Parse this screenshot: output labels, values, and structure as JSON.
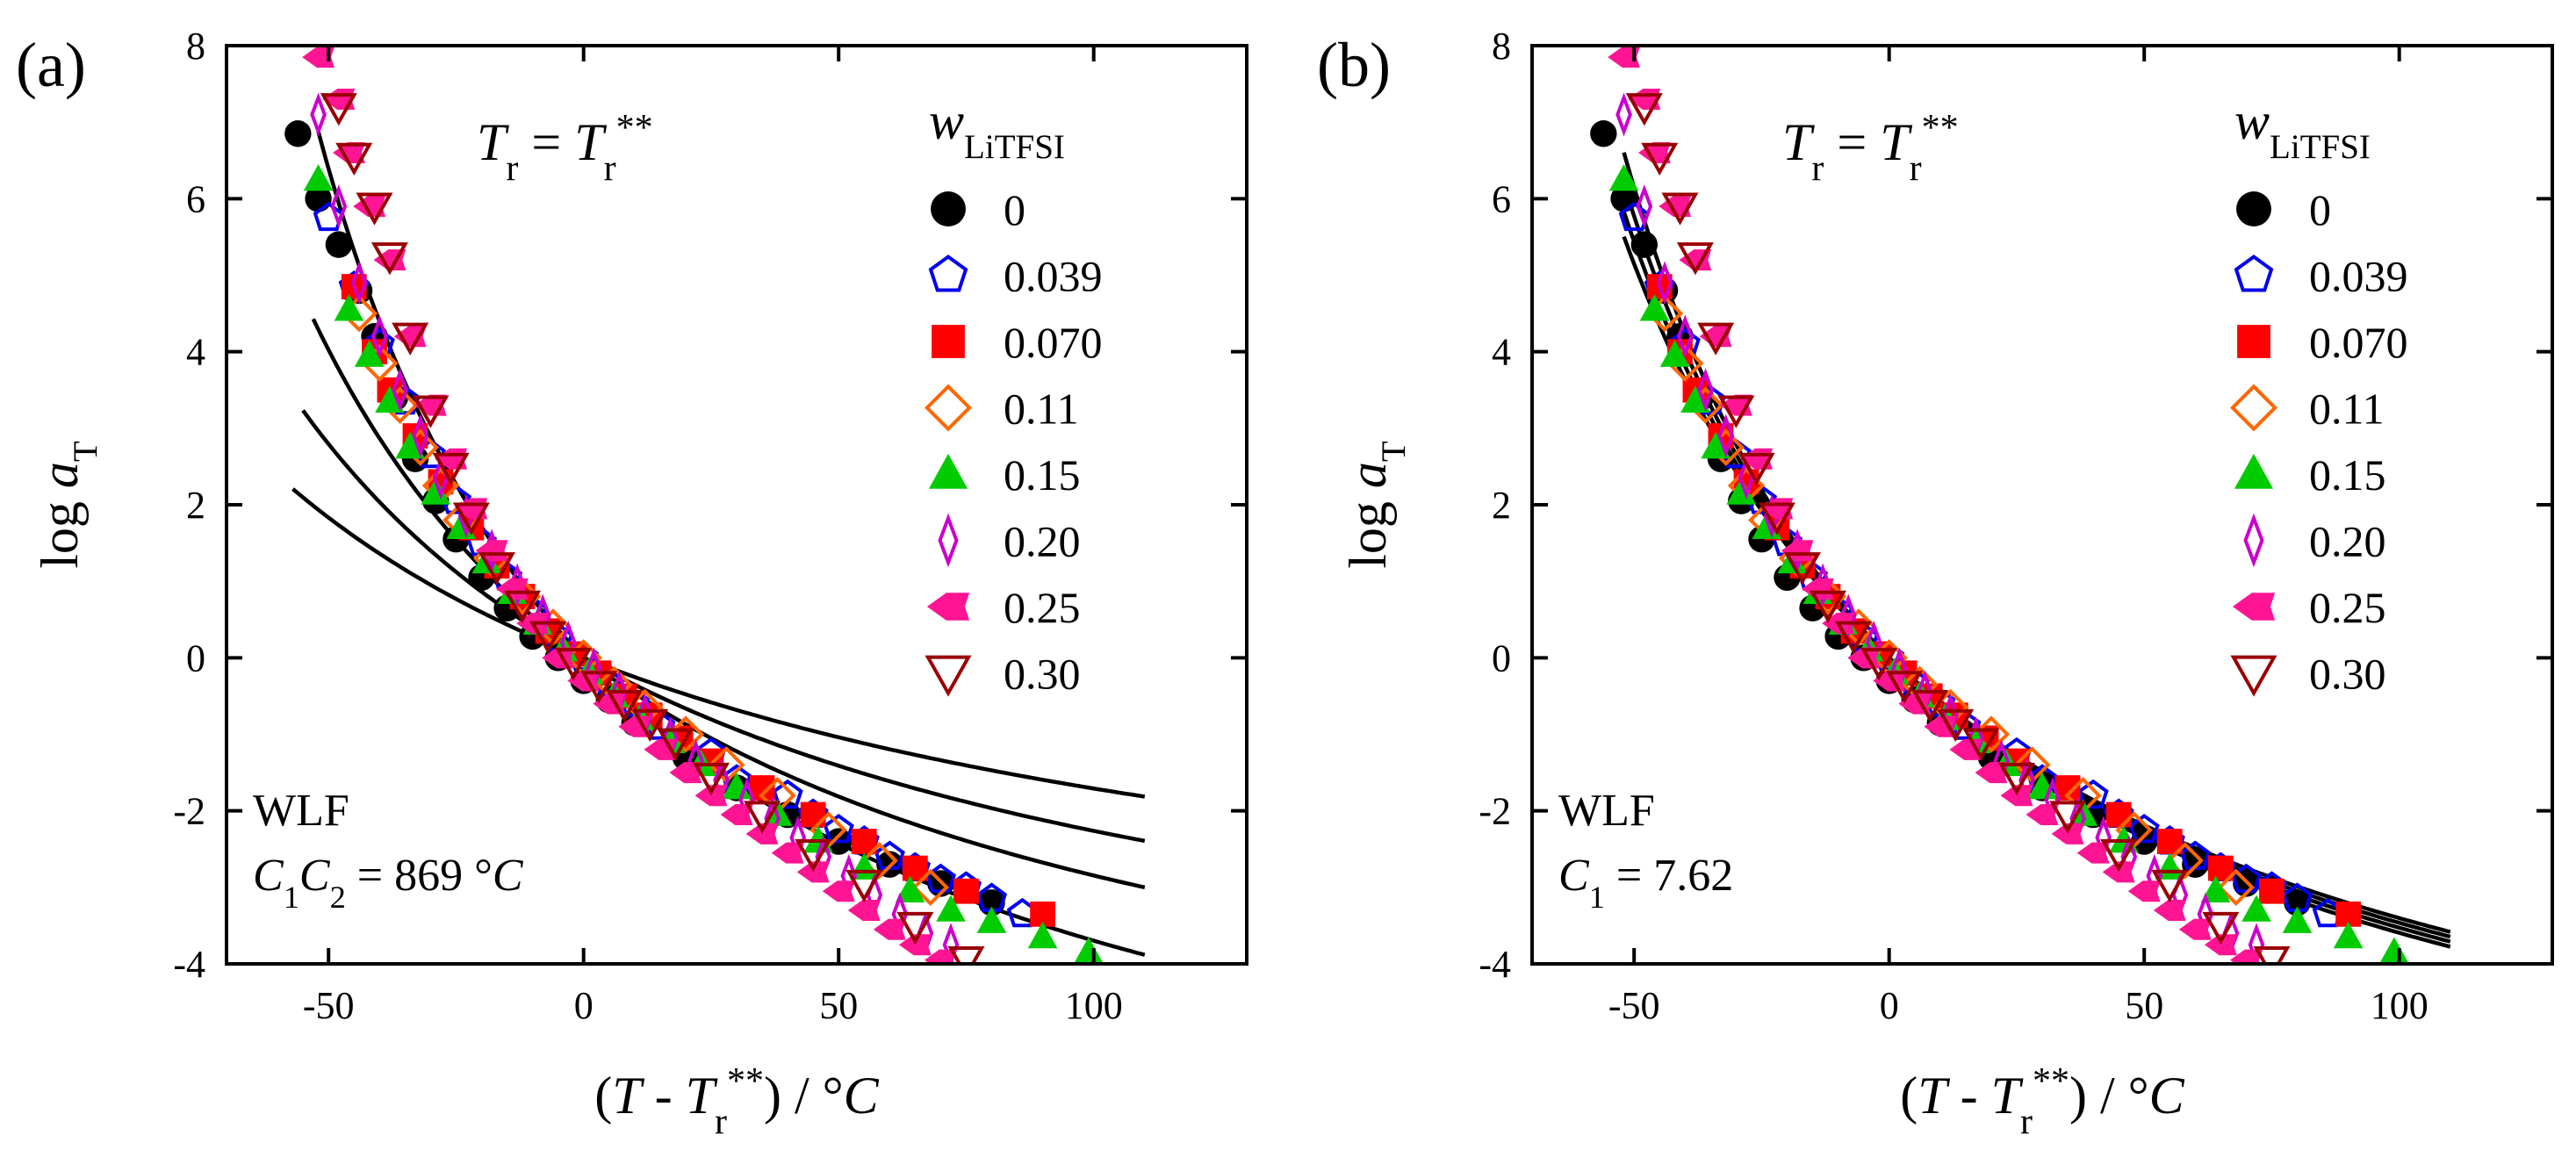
{
  "chart_data": [
    {
      "type": "scatter",
      "panel_label": "(a)",
      "title": "",
      "xlabel": "(T - Tr**) / °C",
      "ylabel": "log aT",
      "xlim": [
        -70,
        130
      ],
      "ylim": [
        -4,
        8
      ],
      "xticks": [
        -50,
        0,
        50,
        100
      ],
      "yticks": [
        -4,
        -2,
        0,
        2,
        4,
        6,
        8
      ],
      "grid": false,
      "reference_label": "Tr = Tr**",
      "legend_title": "wLiTFSI",
      "legend_position": "top-right",
      "fit_label": "WLF",
      "fit_param_label": "C1C2 = 869 °C",
      "series": [
        {
          "name": "0",
          "marker": "circle",
          "color": "#000000",
          "filled": true,
          "x": [
            -56,
            -52,
            -48,
            -44,
            -41,
            -37,
            -33,
            -29,
            -25,
            -20,
            -15,
            -10,
            -5,
            0,
            5,
            10,
            20,
            30,
            40,
            50,
            60,
            70,
            80
          ],
          "y": [
            6.85,
            6.0,
            5.4,
            4.8,
            4.2,
            3.4,
            2.6,
            2.05,
            1.55,
            1.05,
            0.65,
            0.28,
            0.0,
            -0.3,
            -0.55,
            -0.85,
            -1.3,
            -1.7,
            -2.05,
            -2.4,
            -2.7,
            -2.95,
            -3.2
          ]
        },
        {
          "name": "0.039",
          "marker": "pentagon",
          "color": "#0000ee",
          "filled": false,
          "x": [
            -50,
            -45,
            -40,
            -35,
            -30,
            -25,
            -20,
            -15,
            -10,
            -5,
            0,
            5,
            10,
            15,
            25,
            30,
            40,
            45,
            50,
            55,
            60,
            65,
            70,
            75,
            80,
            86
          ],
          "y": [
            5.75,
            4.85,
            4.1,
            3.35,
            2.65,
            2.05,
            1.5,
            1.05,
            0.6,
            0.25,
            0.0,
            -0.35,
            -0.6,
            -0.9,
            -1.25,
            -1.6,
            -1.8,
            -2.05,
            -2.25,
            -2.4,
            -2.6,
            -2.75,
            -2.9,
            -3.0,
            -3.15,
            -3.35
          ]
        },
        {
          "name": "0.070",
          "marker": "square",
          "color": "#ff0000",
          "filled": true,
          "x": [
            -45,
            -41,
            -38,
            -33,
            -28,
            -22,
            -17,
            -12,
            -7,
            -2,
            3,
            8,
            13,
            19,
            25,
            35,
            45,
            55,
            65,
            75,
            90
          ],
          "y": [
            4.85,
            4.0,
            3.5,
            2.9,
            2.3,
            1.7,
            1.2,
            0.8,
            0.35,
            0.05,
            -0.2,
            -0.5,
            -0.75,
            -1.05,
            -1.35,
            -1.7,
            -2.05,
            -2.4,
            -2.75,
            -3.05,
            -3.35
          ]
        },
        {
          "name": "0.11",
          "marker": "diamond",
          "color": "#ff6600",
          "filled": false,
          "x": [
            -44,
            -40,
            -36,
            -32,
            -28,
            -24,
            -18,
            -12,
            -6,
            0,
            6,
            12,
            20,
            28,
            38,
            48,
            58,
            68
          ],
          "y": [
            4.5,
            3.85,
            3.3,
            2.75,
            2.25,
            1.8,
            1.3,
            0.8,
            0.4,
            0.0,
            -0.35,
            -0.65,
            -1.0,
            -1.4,
            -1.8,
            -2.25,
            -2.65,
            -3.0
          ]
        },
        {
          "name": "0.15",
          "marker": "triangle",
          "color": "#00cc00",
          "filled": true,
          "x": [
            -52,
            -46,
            -42,
            -38,
            -34,
            -29,
            -24,
            -19,
            -14,
            -9,
            -4,
            1,
            6,
            11,
            17,
            23,
            30,
            38,
            46,
            55,
            64,
            72,
            80,
            90,
            99
          ],
          "y": [
            6.25,
            4.55,
            3.95,
            3.35,
            2.75,
            2.15,
            1.7,
            1.25,
            0.85,
            0.45,
            0.1,
            -0.2,
            -0.5,
            -0.8,
            -1.1,
            -1.4,
            -1.7,
            -2.05,
            -2.4,
            -2.75,
            -3.05,
            -3.3,
            -3.45,
            -3.65,
            -3.85
          ]
        },
        {
          "name": "0.20",
          "marker": "thin-diamond",
          "color": "#cc00cc",
          "filled": false,
          "x": [
            -52,
            -48,
            -44,
            -40,
            -36,
            -32,
            -28,
            -23,
            -18,
            -13,
            -8,
            -3,
            2,
            7,
            12,
            17,
            22,
            27,
            32,
            37,
            42,
            47,
            52,
            57,
            62,
            67,
            72
          ],
          "y": [
            7.1,
            5.9,
            4.9,
            4.2,
            3.5,
            2.9,
            2.35,
            1.85,
            1.4,
            0.95,
            0.55,
            0.2,
            -0.15,
            -0.45,
            -0.75,
            -1.05,
            -1.35,
            -1.6,
            -1.85,
            -2.1,
            -2.35,
            -2.6,
            -2.85,
            -3.1,
            -3.35,
            -3.6,
            -3.75
          ]
        },
        {
          "name": "0.25",
          "marker": "arrow-diamond",
          "color": "#ff1493",
          "filled": true,
          "x": [
            -52,
            -48,
            -46,
            -42,
            -38,
            -34,
            -30,
            -26,
            -22,
            -18,
            -14,
            -10,
            -5,
            0,
            5,
            10,
            15,
            20,
            25,
            30,
            35,
            40,
            45,
            50,
            55,
            60,
            65,
            70
          ],
          "y": [
            7.85,
            7.3,
            6.6,
            5.9,
            5.2,
            4.2,
            3.3,
            2.6,
            1.95,
            1.4,
            0.9,
            0.45,
            0.0,
            -0.3,
            -0.6,
            -0.9,
            -1.2,
            -1.5,
            -1.8,
            -2.05,
            -2.3,
            -2.55,
            -2.8,
            -3.05,
            -3.3,
            -3.55,
            -3.75,
            -3.95
          ]
        },
        {
          "name": "0.30",
          "marker": "triangle-down",
          "color": "#990000",
          "filled": false,
          "x": [
            -48,
            -45,
            -41,
            -38,
            -34,
            -30,
            -26,
            -22,
            -17,
            -12,
            -7,
            -2,
            3,
            8,
            13,
            18,
            25,
            35,
            45,
            55,
            65,
            75
          ],
          "y": [
            7.2,
            6.55,
            5.9,
            5.25,
            4.2,
            3.25,
            2.5,
            1.85,
            1.2,
            0.7,
            0.3,
            -0.05,
            -0.35,
            -0.6,
            -0.85,
            -1.1,
            -1.55,
            -2.05,
            -2.55,
            -2.95,
            -3.5,
            -3.95
          ]
        }
      ],
      "fit_curves": [
        {
          "c1": 4.8,
          "c2": 181,
          "xmin": -57,
          "xmax": 110
        },
        {
          "c1": 5.7,
          "c2": 152,
          "xmin": -55,
          "xmax": 110
        },
        {
          "c1": 6.6,
          "c2": 132,
          "xmin": -53,
          "xmax": 110
        },
        {
          "c1": 7.8,
          "c2": 111,
          "xmin": -52,
          "xmax": 110
        }
      ]
    },
    {
      "type": "scatter",
      "panel_label": "(b)",
      "title": "",
      "xlabel": "(T - Tr**) / °C",
      "ylabel": "log aT",
      "xlim": [
        -70,
        130
      ],
      "ylim": [
        -4,
        8
      ],
      "xticks": [
        -50,
        0,
        50,
        100
      ],
      "yticks": [
        -4,
        -2,
        0,
        2,
        4,
        6,
        8
      ],
      "grid": false,
      "reference_label": "Tr = Tr**",
      "legend_title": "wLiTFSI",
      "legend_position": "top-right",
      "fit_label": "WLF",
      "fit_param_label": "C1 = 7.62",
      "series": [
        {
          "name": "0",
          "marker": "circle",
          "color": "#000000",
          "filled": true,
          "x": [
            -56,
            -52,
            -48,
            -44,
            -41,
            -37,
            -33,
            -29,
            -25,
            -20,
            -15,
            -10,
            -5,
            0,
            5,
            10,
            20,
            30,
            40,
            50,
            60,
            70,
            80
          ],
          "y": [
            6.85,
            6.0,
            5.4,
            4.8,
            4.2,
            3.4,
            2.6,
            2.05,
            1.55,
            1.05,
            0.65,
            0.28,
            0.0,
            -0.3,
            -0.55,
            -0.85,
            -1.3,
            -1.7,
            -2.05,
            -2.4,
            -2.7,
            -2.95,
            -3.2
          ]
        },
        {
          "name": "0.039",
          "marker": "pentagon",
          "color": "#0000ee",
          "filled": false,
          "x": [
            -50,
            -45,
            -40,
            -35,
            -30,
            -25,
            -20,
            -15,
            -10,
            -5,
            0,
            5,
            10,
            15,
            25,
            30,
            40,
            45,
            50,
            55,
            60,
            65,
            70,
            75,
            80,
            86
          ],
          "y": [
            5.75,
            4.85,
            4.1,
            3.35,
            2.65,
            2.05,
            1.5,
            1.05,
            0.6,
            0.25,
            0.0,
            -0.35,
            -0.6,
            -0.9,
            -1.25,
            -1.6,
            -1.8,
            -2.05,
            -2.25,
            -2.4,
            -2.6,
            -2.75,
            -2.9,
            -3.0,
            -3.15,
            -3.35
          ]
        },
        {
          "name": "0.070",
          "marker": "square",
          "color": "#ff0000",
          "filled": true,
          "x": [
            -45,
            -41,
            -38,
            -33,
            -28,
            -22,
            -17,
            -12,
            -7,
            -2,
            3,
            8,
            13,
            19,
            25,
            35,
            45,
            55,
            65,
            75,
            90
          ],
          "y": [
            4.85,
            4.0,
            3.5,
            2.9,
            2.3,
            1.7,
            1.2,
            0.8,
            0.35,
            0.05,
            -0.2,
            -0.5,
            -0.75,
            -1.05,
            -1.35,
            -1.7,
            -2.05,
            -2.4,
            -2.75,
            -3.05,
            -3.35
          ]
        },
        {
          "name": "0.11",
          "marker": "diamond",
          "color": "#ff6600",
          "filled": false,
          "x": [
            -44,
            -40,
            -36,
            -32,
            -28,
            -24,
            -18,
            -12,
            -6,
            0,
            6,
            12,
            20,
            28,
            38,
            48,
            58,
            68
          ],
          "y": [
            4.5,
            3.85,
            3.3,
            2.75,
            2.25,
            1.8,
            1.3,
            0.8,
            0.4,
            0.0,
            -0.35,
            -0.65,
            -1.0,
            -1.4,
            -1.8,
            -2.25,
            -2.65,
            -3.0
          ]
        },
        {
          "name": "0.15",
          "marker": "triangle",
          "color": "#00cc00",
          "filled": true,
          "x": [
            -52,
            -46,
            -42,
            -38,
            -34,
            -29,
            -24,
            -19,
            -14,
            -9,
            -4,
            1,
            6,
            11,
            17,
            23,
            30,
            38,
            46,
            55,
            64,
            72,
            80,
            90,
            99
          ],
          "y": [
            6.25,
            4.55,
            3.95,
            3.35,
            2.75,
            2.15,
            1.7,
            1.25,
            0.85,
            0.45,
            0.1,
            -0.2,
            -0.5,
            -0.8,
            -1.1,
            -1.4,
            -1.7,
            -2.05,
            -2.4,
            -2.75,
            -3.05,
            -3.3,
            -3.45,
            -3.65,
            -3.85
          ]
        },
        {
          "name": "0.20",
          "marker": "thin-diamond",
          "color": "#cc00cc",
          "filled": false,
          "x": [
            -52,
            -48,
            -44,
            -40,
            -36,
            -32,
            -28,
            -23,
            -18,
            -13,
            -8,
            -3,
            2,
            7,
            12,
            17,
            22,
            27,
            32,
            37,
            42,
            47,
            52,
            57,
            62,
            67,
            72
          ],
          "y": [
            7.1,
            5.9,
            4.9,
            4.2,
            3.5,
            2.9,
            2.35,
            1.85,
            1.4,
            0.95,
            0.55,
            0.2,
            -0.15,
            -0.45,
            -0.75,
            -1.05,
            -1.35,
            -1.6,
            -1.85,
            -2.1,
            -2.35,
            -2.6,
            -2.85,
            -3.1,
            -3.35,
            -3.6,
            -3.75
          ]
        },
        {
          "name": "0.25",
          "marker": "arrow-diamond",
          "color": "#ff1493",
          "filled": true,
          "x": [
            -52,
            -48,
            -46,
            -42,
            -38,
            -34,
            -30,
            -26,
            -22,
            -18,
            -14,
            -10,
            -5,
            0,
            5,
            10,
            15,
            20,
            25,
            30,
            35,
            40,
            45,
            50,
            55,
            60,
            65,
            70
          ],
          "y": [
            7.85,
            7.3,
            6.6,
            5.9,
            5.2,
            4.2,
            3.3,
            2.6,
            1.95,
            1.4,
            0.9,
            0.45,
            0.0,
            -0.3,
            -0.6,
            -0.9,
            -1.2,
            -1.5,
            -1.8,
            -2.05,
            -2.3,
            -2.55,
            -2.8,
            -3.05,
            -3.3,
            -3.55,
            -3.75,
            -3.95
          ]
        },
        {
          "name": "0.30",
          "marker": "triangle-down",
          "color": "#990000",
          "filled": false,
          "x": [
            -48,
            -45,
            -41,
            -38,
            -34,
            -30,
            -26,
            -22,
            -17,
            -12,
            -7,
            -2,
            3,
            8,
            13,
            18,
            25,
            35,
            45,
            55,
            65,
            75
          ],
          "y": [
            7.2,
            6.55,
            5.9,
            5.25,
            4.2,
            3.25,
            2.5,
            1.85,
            1.2,
            0.7,
            0.3,
            -0.05,
            -0.35,
            -0.6,
            -0.85,
            -1.1,
            -1.55,
            -2.05,
            -2.55,
            -2.95,
            -3.5,
            -3.95
          ]
        }
      ],
      "fit_curves": [
        {
          "c1": 7.62,
          "c2": 112,
          "xmin": -52,
          "xmax": 110
        },
        {
          "c1": 7.62,
          "c2": 116,
          "xmin": -52,
          "xmax": 110
        },
        {
          "c1": 7.62,
          "c2": 120,
          "xmin": -52,
          "xmax": 110
        },
        {
          "c1": 7.62,
          "c2": 124,
          "xmin": -52,
          "xmax": 110
        }
      ]
    }
  ]
}
